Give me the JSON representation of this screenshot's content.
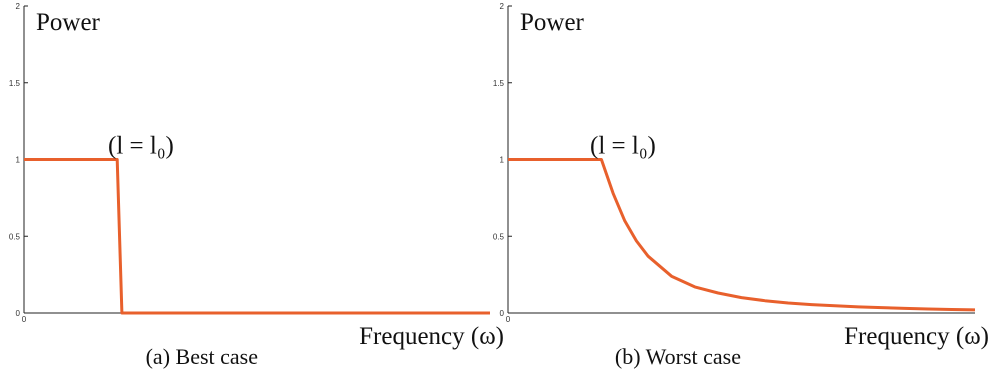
{
  "chart_data": [
    {
      "type": "line",
      "subcaption": "(a) Best case",
      "ylabel": "Power",
      "xlabel": "Frequency (ω)",
      "annotation": "(l = l₀)",
      "xlim": [
        0,
        1
      ],
      "ylim": [
        0,
        2
      ],
      "yticks": [
        "0",
        "0.5",
        "1",
        "1.5",
        "2"
      ],
      "xticks": [
        "0"
      ],
      "series": [
        {
          "color": "#e8602c",
          "x": [
            0,
            0.2,
            0.21,
            1
          ],
          "y": [
            1,
            1,
            0,
            0
          ]
        }
      ]
    },
    {
      "type": "line",
      "subcaption": "(b) Worst case",
      "ylabel": "Power",
      "xlabel": "Frequency (ω)",
      "annotation": "(l = l₀)",
      "xlim": [
        0,
        1
      ],
      "ylim": [
        0,
        2
      ],
      "yticks": [
        "0",
        "0.5",
        "1",
        "1.5",
        "2"
      ],
      "xticks": [
        "0"
      ],
      "series": [
        {
          "color": "#e8602c",
          "x": [
            0,
            0.2,
            0.225,
            0.25,
            0.275,
            0.3,
            0.35,
            0.4,
            0.45,
            0.5,
            0.55,
            0.6,
            0.65,
            0.7,
            0.75,
            0.8,
            0.85,
            0.9,
            0.95,
            1.0
          ],
          "y": [
            1,
            1,
            0.78,
            0.6,
            0.47,
            0.37,
            0.24,
            0.17,
            0.13,
            0.1,
            0.08,
            0.065,
            0.055,
            0.047,
            0.04,
            0.035,
            0.03,
            0.026,
            0.023,
            0.02
          ]
        }
      ]
    }
  ]
}
